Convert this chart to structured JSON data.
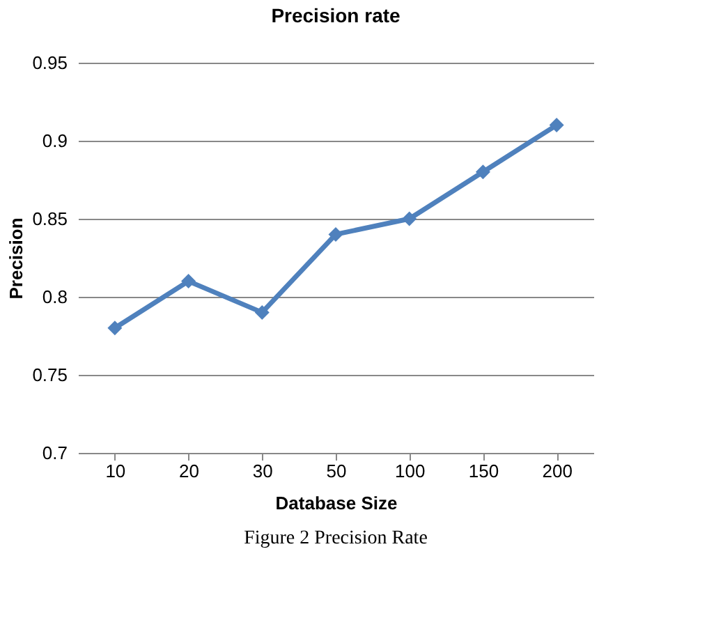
{
  "chart_data": {
    "type": "line",
    "title": "Precision rate",
    "xlabel": "Database Size",
    "ylabel": "Precision",
    "categories": [
      "10",
      "20",
      "30",
      "50",
      "100",
      "150",
      "200"
    ],
    "series": [
      {
        "color": "#4f81bd",
        "values": [
          0.78,
          0.81,
          0.79,
          0.84,
          0.85,
          0.88,
          0.91
        ]
      }
    ],
    "ylim": [
      0.7,
      0.95
    ],
    "yticks": [
      0.7,
      0.75,
      0.8,
      0.85,
      0.9,
      0.95
    ],
    "grid": "y",
    "marker": "diamond",
    "line_style": "solid",
    "legend": false,
    "annotations": [
      "Figure 2 Precision Rate"
    ]
  }
}
